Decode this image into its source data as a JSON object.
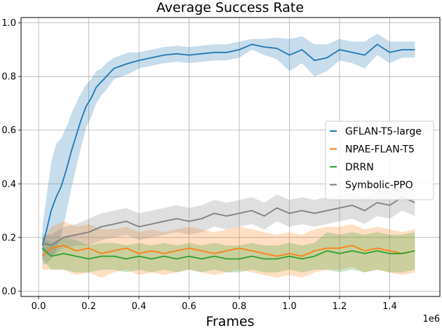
{
  "chart_data": {
    "type": "line",
    "title": "Average Success Rate",
    "xlabel": "Frames",
    "ylabel": "",
    "x_offset_label": "1e6",
    "xlim": [
      -0.07,
      1.6
    ],
    "ylim": [
      -0.02,
      1.02
    ],
    "x_ticks": [
      0.0,
      0.2,
      0.4,
      0.6,
      0.8,
      1.0,
      1.2,
      1.4
    ],
    "x_tick_labels": [
      "0.0",
      "0.2",
      "0.4",
      "0.6",
      "0.8",
      "1.0",
      "1.2",
      "1.4"
    ],
    "y_ticks": [
      0.0,
      0.2,
      0.4,
      0.6,
      0.8,
      1.0
    ],
    "y_tick_labels": [
      "0.0",
      "0.2",
      "0.4",
      "0.6",
      "0.8",
      "1.0"
    ],
    "grid": true,
    "legend_position": "right",
    "series": [
      {
        "name": "GFLAN-T5-large",
        "color": "#1f77b4",
        "x": [
          0.015,
          0.03,
          0.05,
          0.07,
          0.09,
          0.11,
          0.13,
          0.15,
          0.17,
          0.19,
          0.21,
          0.23,
          0.25,
          0.27,
          0.3,
          0.33,
          0.36,
          0.4,
          0.45,
          0.5,
          0.55,
          0.6,
          0.65,
          0.7,
          0.75,
          0.8,
          0.85,
          0.9,
          0.95,
          1.0,
          1.05,
          1.1,
          1.15,
          1.2,
          1.25,
          1.3,
          1.35,
          1.4,
          1.45,
          1.5
        ],
        "values": [
          0.17,
          0.22,
          0.3,
          0.35,
          0.39,
          0.45,
          0.52,
          0.58,
          0.64,
          0.69,
          0.72,
          0.76,
          0.78,
          0.8,
          0.83,
          0.84,
          0.85,
          0.86,
          0.87,
          0.88,
          0.885,
          0.88,
          0.885,
          0.89,
          0.89,
          0.9,
          0.92,
          0.91,
          0.905,
          0.88,
          0.9,
          0.86,
          0.87,
          0.9,
          0.89,
          0.88,
          0.92,
          0.89,
          0.9,
          0.9
        ],
        "band": [
          0.07,
          0.12,
          0.18,
          0.2,
          0.18,
          0.16,
          0.14,
          0.12,
          0.1,
          0.08,
          0.07,
          0.06,
          0.05,
          0.05,
          0.04,
          0.04,
          0.04,
          0.03,
          0.03,
          0.03,
          0.03,
          0.03,
          0.03,
          0.03,
          0.03,
          0.03,
          0.02,
          0.03,
          0.04,
          0.06,
          0.05,
          0.06,
          0.05,
          0.04,
          0.04,
          0.05,
          0.04,
          0.04,
          0.03,
          0.03
        ]
      },
      {
        "name": "NPAE-FLAN-T5",
        "color": "#ff7f0e",
        "x": [
          0.015,
          0.05,
          0.1,
          0.15,
          0.2,
          0.25,
          0.3,
          0.35,
          0.4,
          0.45,
          0.5,
          0.55,
          0.6,
          0.65,
          0.7,
          0.75,
          0.8,
          0.85,
          0.9,
          0.95,
          1.0,
          1.05,
          1.1,
          1.15,
          1.2,
          1.25,
          1.3,
          1.35,
          1.4,
          1.45,
          1.5
        ],
        "values": [
          0.13,
          0.16,
          0.17,
          0.15,
          0.16,
          0.14,
          0.15,
          0.16,
          0.14,
          0.15,
          0.14,
          0.15,
          0.16,
          0.15,
          0.14,
          0.15,
          0.16,
          0.15,
          0.14,
          0.13,
          0.14,
          0.13,
          0.15,
          0.16,
          0.16,
          0.17,
          0.15,
          0.16,
          0.15,
          0.14,
          0.15
        ],
        "band": [
          0.05,
          0.08,
          0.09,
          0.09,
          0.09,
          0.09,
          0.08,
          0.08,
          0.08,
          0.08,
          0.08,
          0.08,
          0.08,
          0.08,
          0.08,
          0.08,
          0.08,
          0.08,
          0.08,
          0.08,
          0.08,
          0.08,
          0.08,
          0.08,
          0.08,
          0.08,
          0.08,
          0.08,
          0.08,
          0.08,
          0.08
        ]
      },
      {
        "name": "DRRN",
        "color": "#2ca02c",
        "x": [
          0.015,
          0.05,
          0.1,
          0.15,
          0.2,
          0.25,
          0.3,
          0.35,
          0.4,
          0.45,
          0.5,
          0.55,
          0.6,
          0.65,
          0.7,
          0.75,
          0.8,
          0.85,
          0.9,
          0.95,
          1.0,
          1.05,
          1.1,
          1.15,
          1.2,
          1.25,
          1.3,
          1.35,
          1.4,
          1.45,
          1.5
        ],
        "values": [
          0.16,
          0.13,
          0.14,
          0.13,
          0.12,
          0.13,
          0.13,
          0.12,
          0.13,
          0.12,
          0.13,
          0.12,
          0.13,
          0.12,
          0.13,
          0.12,
          0.12,
          0.13,
          0.12,
          0.12,
          0.13,
          0.12,
          0.13,
          0.15,
          0.14,
          0.15,
          0.14,
          0.15,
          0.14,
          0.14,
          0.15
        ],
        "band": [
          0.04,
          0.05,
          0.06,
          0.06,
          0.05,
          0.05,
          0.05,
          0.05,
          0.05,
          0.05,
          0.05,
          0.05,
          0.05,
          0.05,
          0.05,
          0.05,
          0.05,
          0.05,
          0.05,
          0.05,
          0.05,
          0.05,
          0.05,
          0.07,
          0.07,
          0.07,
          0.07,
          0.07,
          0.07,
          0.07,
          0.07
        ]
      },
      {
        "name": "Symbolic-PPO",
        "color": "#7f7f7f",
        "x": [
          0.015,
          0.05,
          0.1,
          0.15,
          0.2,
          0.25,
          0.3,
          0.35,
          0.4,
          0.45,
          0.5,
          0.55,
          0.6,
          0.65,
          0.7,
          0.75,
          0.8,
          0.85,
          0.9,
          0.95,
          1.0,
          1.05,
          1.1,
          1.15,
          1.2,
          1.25,
          1.3,
          1.35,
          1.4,
          1.45,
          1.5
        ],
        "values": [
          0.18,
          0.17,
          0.2,
          0.21,
          0.22,
          0.24,
          0.25,
          0.26,
          0.24,
          0.25,
          0.26,
          0.27,
          0.26,
          0.27,
          0.29,
          0.28,
          0.29,
          0.3,
          0.28,
          0.31,
          0.29,
          0.3,
          0.29,
          0.3,
          0.31,
          0.32,
          0.3,
          0.33,
          0.32,
          0.35,
          0.33
        ],
        "band": [
          0.03,
          0.04,
          0.04,
          0.04,
          0.05,
          0.05,
          0.05,
          0.05,
          0.05,
          0.05,
          0.05,
          0.05,
          0.05,
          0.05,
          0.05,
          0.05,
          0.05,
          0.05,
          0.05,
          0.05,
          0.05,
          0.05,
          0.05,
          0.05,
          0.05,
          0.05,
          0.05,
          0.05,
          0.05,
          0.05,
          0.05
        ]
      }
    ]
  }
}
